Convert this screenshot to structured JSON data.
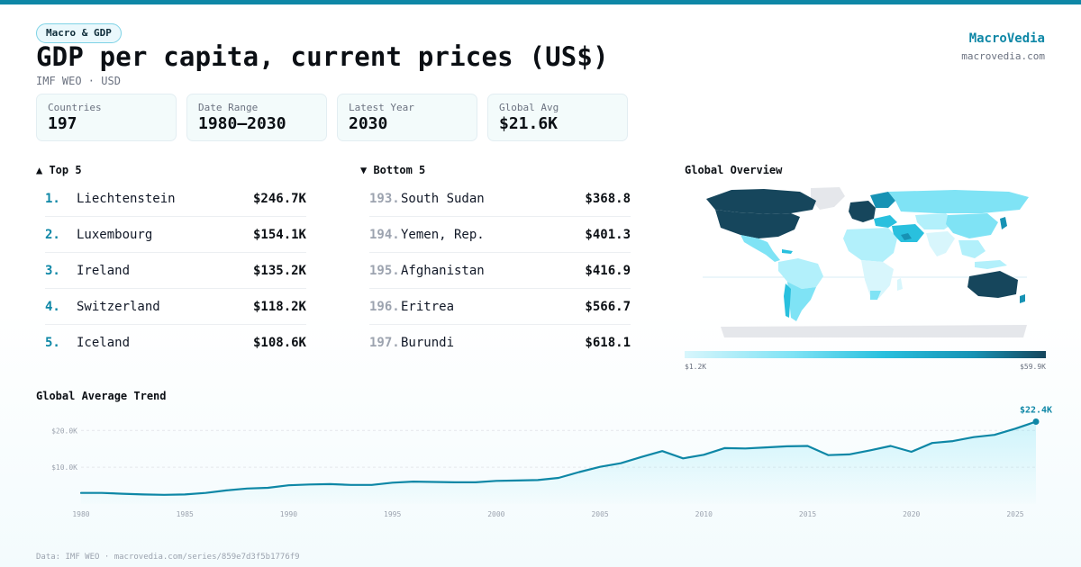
{
  "header": {
    "badge": "Macro & GDP",
    "title": "GDP per capita, current prices (US$)",
    "subtitle": "IMF WEO · USD",
    "brand": "MacroVedia",
    "domain": "macrovedia.com"
  },
  "stats": [
    {
      "label": "Countries",
      "value": "197"
    },
    {
      "label": "Date Range",
      "value": "1980–2030"
    },
    {
      "label": "Latest Year",
      "value": "2030"
    },
    {
      "label": "Global Avg",
      "value": "$21.6K"
    }
  ],
  "top5": {
    "title": "▲ Top 5",
    "items": [
      {
        "rank": "1.",
        "name": "Liechtenstein",
        "value": "$246.7K"
      },
      {
        "rank": "2.",
        "name": "Luxembourg",
        "value": "$154.1K"
      },
      {
        "rank": "3.",
        "name": "Ireland",
        "value": "$135.2K"
      },
      {
        "rank": "4.",
        "name": "Switzerland",
        "value": "$118.2K"
      },
      {
        "rank": "5.",
        "name": "Iceland",
        "value": "$108.6K"
      }
    ]
  },
  "bottom5": {
    "title": "▼ Bottom 5",
    "items": [
      {
        "rank": "193.",
        "name": "South Sudan",
        "value": "$368.8"
      },
      {
        "rank": "194.",
        "name": "Yemen, Rep.",
        "value": "$401.3"
      },
      {
        "rank": "195.",
        "name": "Afghanistan",
        "value": "$416.9"
      },
      {
        "rank": "196.",
        "name": "Eritrea",
        "value": "$566.7"
      },
      {
        "rank": "197.",
        "name": "Burundi",
        "value": "$618.1"
      }
    ]
  },
  "map": {
    "title": "Global Overview",
    "legend_min": "$1.2K",
    "legend_max": "$59.9K"
  },
  "trend_title": "Global Average Trend",
  "footer": "Data: IMF WEO · macrovedia.com/series/859e7d3f5b1776f9",
  "colors": {
    "accent": "#0e87a6",
    "dark": "#16465c",
    "light": "#d8f6fc",
    "grid": "#e5e7eb",
    "unknown": "#e5e7eb"
  },
  "chart_data": {
    "type": "area",
    "title": "Global Average Trend",
    "xlabel": "",
    "ylabel": "",
    "x_ticks": [
      1980,
      1985,
      1990,
      1995,
      2000,
      2005,
      2010,
      2015,
      2020,
      2025
    ],
    "y_ticks": [
      10000,
      20000
    ],
    "y_tick_labels": [
      "$10.0K",
      "$20.0K"
    ],
    "xlim": [
      1980,
      2026
    ],
    "ylim": [
      0,
      23500
    ],
    "end_label": "$22.4K",
    "grid": "horizontal",
    "series": [
      {
        "x": [
          1980,
          1981,
          1982,
          1983,
          1984,
          1985,
          1986,
          1987,
          1988,
          1989,
          1990,
          1991,
          1992,
          1993,
          1994,
          1995,
          1996,
          1997,
          1998,
          1999,
          2000,
          2001,
          2002,
          2003,
          2004,
          2005,
          2006,
          2007,
          2008,
          2009,
          2010,
          2011,
          2012,
          2013,
          2014,
          2015,
          2016,
          2017,
          2018,
          2019,
          2020,
          2021,
          2022,
          2023,
          2024,
          2025,
          2026
        ],
        "values": [
          3000,
          3000,
          2800,
          2600,
          2500,
          2600,
          3000,
          3700,
          4200,
          4400,
          5100,
          5300,
          5400,
          5200,
          5200,
          5800,
          6100,
          6000,
          5900,
          5900,
          6300,
          6400,
          6500,
          7100,
          8700,
          10100,
          11100,
          12800,
          14400,
          12400,
          13400,
          15200,
          15100,
          15400,
          15700,
          15800,
          13300,
          13500,
          14600,
          15800,
          14200,
          16600,
          17100,
          18200,
          18800,
          20500,
          22400
        ]
      }
    ]
  }
}
